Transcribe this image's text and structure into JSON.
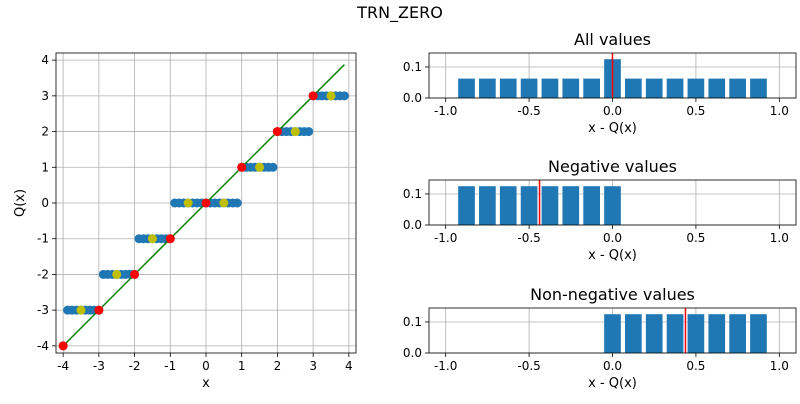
{
  "suptitle": "TRN_ZERO",
  "colors": {
    "samples": "#1f77b4",
    "identity": "#008000",
    "integers": "#ff0000",
    "half_integers": "#bfbf00",
    "bars": "#1f77b4",
    "mean_line": "#ff0000",
    "grid": "#b0b0b0"
  },
  "chart_data": [
    {
      "type": "scatter",
      "title": "",
      "xlabel": "x",
      "ylabel": "Q(x)",
      "xlim": [
        -4.2,
        4.2
      ],
      "ylim": [
        -4.2,
        4.2
      ],
      "xticks": [
        -4,
        -3,
        -2,
        -1,
        0,
        1,
        2,
        3,
        4
      ],
      "yticks": [
        -4,
        -3,
        -2,
        -1,
        0,
        1,
        2,
        3,
        4
      ],
      "grid": true,
      "x_step": 0.125,
      "x_range": [
        -4,
        3.875
      ],
      "quantizer": "truncate toward zero",
      "identity_line": [
        [
          -4,
          -4
        ],
        [
          3.875,
          3.875
        ]
      ],
      "integer_points": [
        [
          -4,
          -4
        ],
        [
          -3,
          -3
        ],
        [
          -2,
          -2
        ],
        [
          -1,
          -1
        ],
        [
          0,
          0
        ],
        [
          1,
          1
        ],
        [
          2,
          2
        ],
        [
          3,
          3
        ]
      ],
      "half_integer_points": [
        [
          -3.5,
          -3
        ],
        [
          -2.5,
          -2
        ],
        [
          -1.5,
          -1
        ],
        [
          -0.5,
          0
        ],
        [
          0.5,
          0
        ],
        [
          1.5,
          1
        ],
        [
          2.5,
          2
        ],
        [
          3.5,
          3
        ]
      ]
    },
    {
      "type": "bar",
      "title": "All values",
      "xlabel": "x - Q(x)",
      "xlim": [
        -1.1,
        1.1
      ],
      "ylim": [
        0,
        0.145
      ],
      "xticks": [
        "-1.0",
        "-0.5",
        "0.0",
        "0.5",
        "1.0"
      ],
      "yticks": [
        "0.0",
        "0.1"
      ],
      "grid": true,
      "x": [
        -0.875,
        -0.75,
        -0.625,
        -0.5,
        -0.375,
        -0.25,
        -0.125,
        0,
        0.125,
        0.25,
        0.375,
        0.5,
        0.625,
        0.75,
        0.875
      ],
      "values": [
        0.0625,
        0.0625,
        0.0625,
        0.0625,
        0.0625,
        0.0625,
        0.0625,
        0.125,
        0.0625,
        0.0625,
        0.0625,
        0.0625,
        0.0625,
        0.0625,
        0.0625
      ],
      "mean": 0
    },
    {
      "type": "bar",
      "title": "Negative values",
      "xlabel": "x - Q(x)",
      "xlim": [
        -1.1,
        1.1
      ],
      "ylim": [
        0,
        0.145
      ],
      "xticks": [
        "-1.0",
        "-0.5",
        "0.0",
        "0.5",
        "1.0"
      ],
      "yticks": [
        "0.0",
        "0.1"
      ],
      "grid": true,
      "x": [
        -0.875,
        -0.75,
        -0.625,
        -0.5,
        -0.375,
        -0.25,
        -0.125,
        0
      ],
      "values": [
        0.125,
        0.125,
        0.125,
        0.125,
        0.125,
        0.125,
        0.125,
        0.125
      ],
      "mean": -0.4375
    },
    {
      "type": "bar",
      "title": "Non-negative values",
      "xlabel": "x - Q(x)",
      "xlim": [
        -1.1,
        1.1
      ],
      "ylim": [
        0,
        0.145
      ],
      "xticks": [
        "-1.0",
        "-0.5",
        "0.0",
        "0.5",
        "1.0"
      ],
      "yticks": [
        "0.0",
        "0.1"
      ],
      "grid": true,
      "x": [
        0,
        0.125,
        0.25,
        0.375,
        0.5,
        0.625,
        0.75,
        0.875
      ],
      "values": [
        0.125,
        0.125,
        0.125,
        0.125,
        0.125,
        0.125,
        0.125,
        0.125
      ],
      "mean": 0.4375
    }
  ]
}
